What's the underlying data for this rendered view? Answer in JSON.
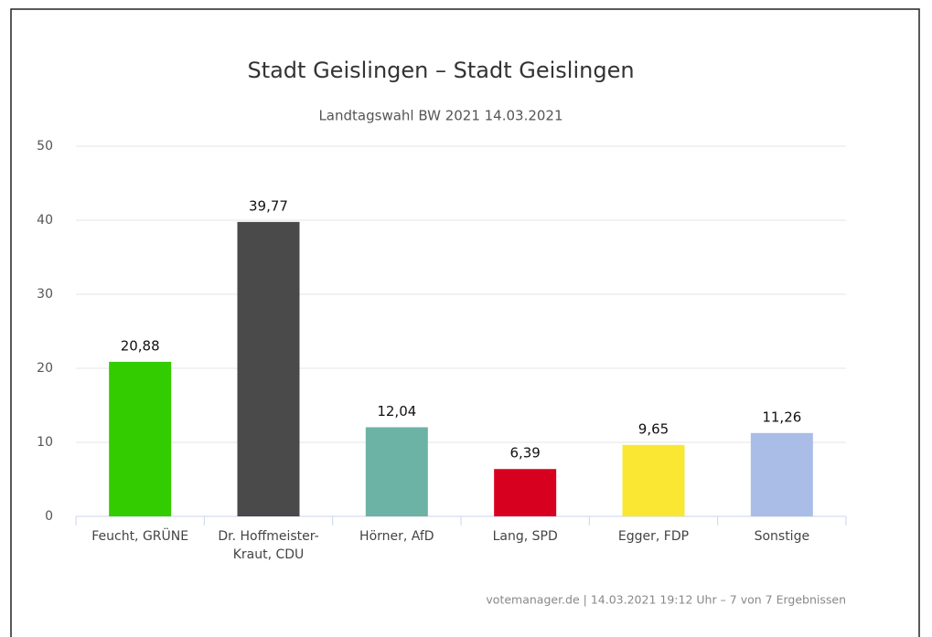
{
  "chart_data": {
    "type": "bar",
    "title": "Stadt Geislingen – Stadt Geislingen",
    "subtitle": "Landtagswahl BW 2021 14.03.2021",
    "credit": "votemanager.de | 14.03.2021 19:12 Uhr – 7 von 7 Ergebnissen",
    "categories": [
      "Feucht, GRÜNE",
      "Dr. Hoffmeister-Kraut, CDU",
      "Hörner, AfD",
      "Lang, SPD",
      "Egger, FDP",
      "Sonstige"
    ],
    "values": [
      20.88,
      39.77,
      12.04,
      6.39,
      9.65,
      11.26
    ],
    "value_labels": [
      "20,88",
      "39,77",
      "12,04",
      "6,39",
      "9,65",
      "11,26"
    ],
    "colors": [
      "#33cc00",
      "#4a4a4a",
      "#6cb3a5",
      "#d7001f",
      "#f9e733",
      "#a9bde6"
    ],
    "ylim": [
      0,
      50
    ],
    "yticks": [
      0,
      10,
      20,
      30,
      40,
      50
    ],
    "grid": true
  }
}
